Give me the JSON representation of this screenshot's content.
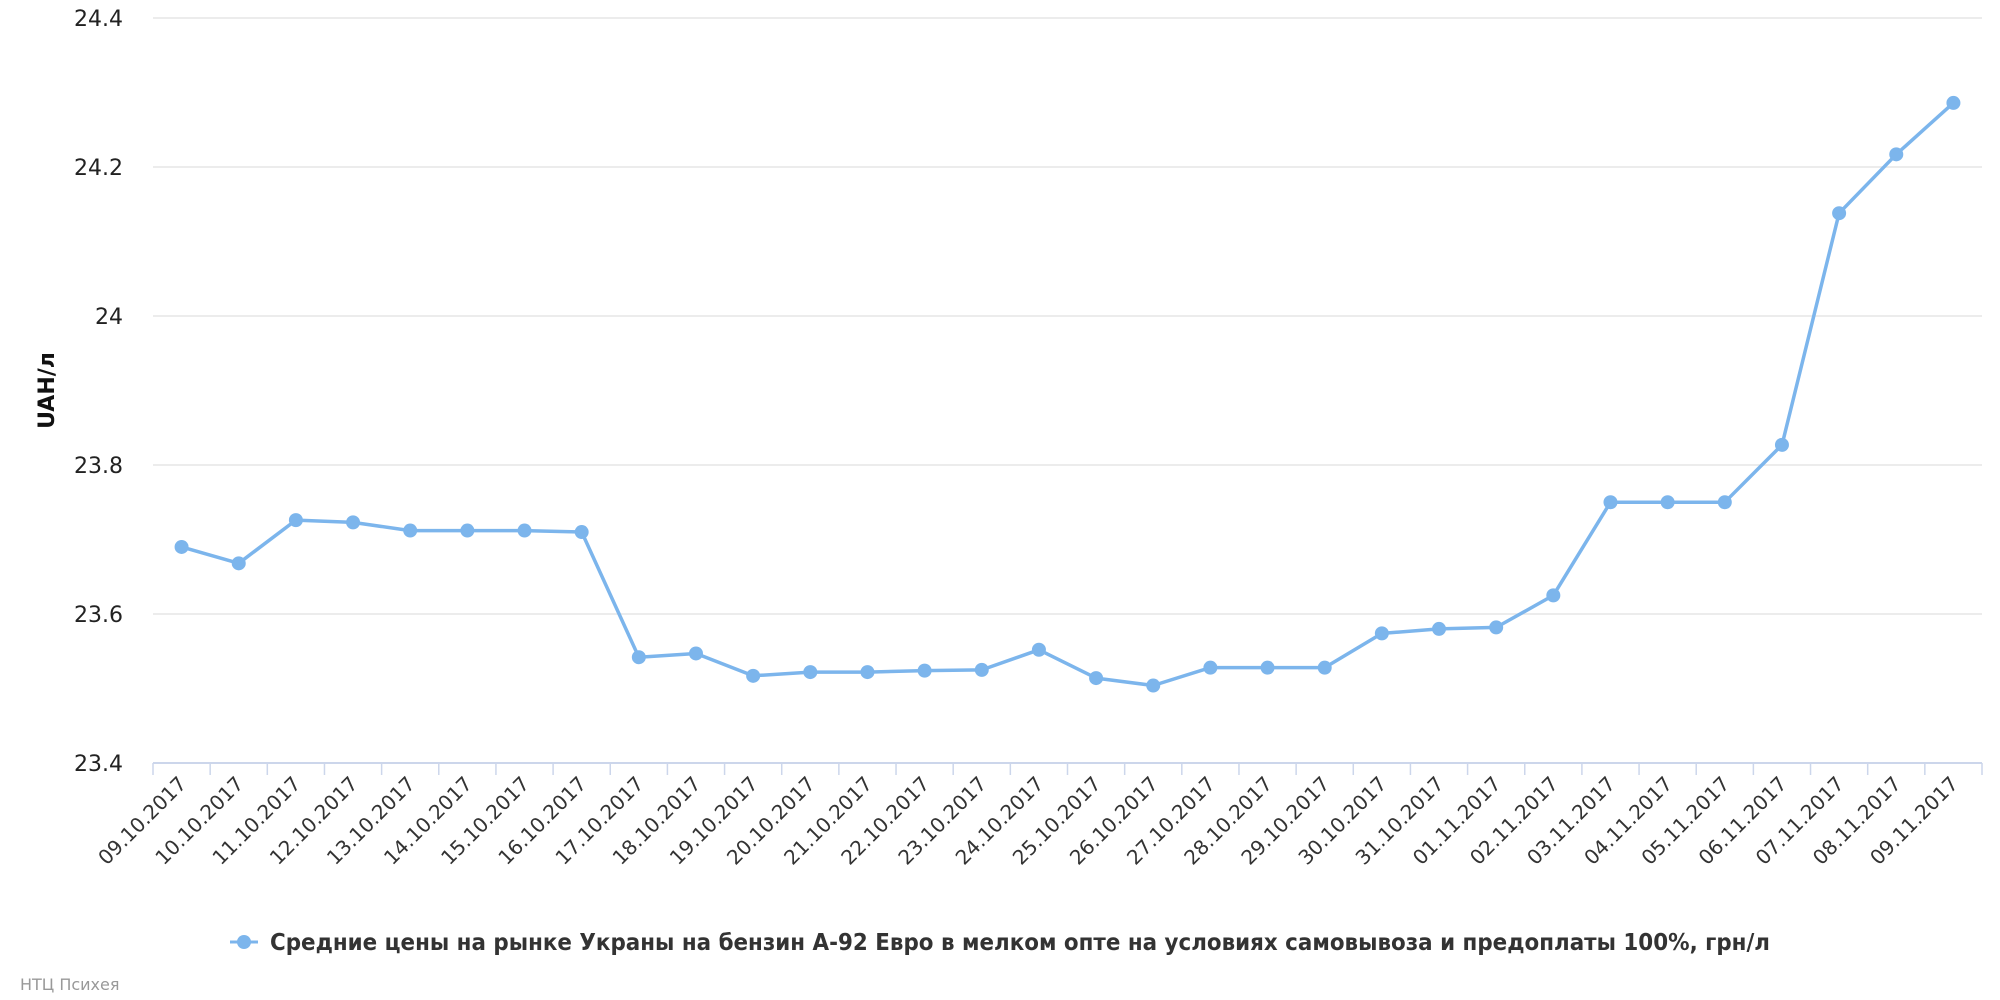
{
  "colors": {
    "series": "#7cb5ec",
    "grid": "#e6e6e6",
    "axis": "#ccd6eb"
  },
  "credit": "НТЦ Психея",
  "chart_data": {
    "type": "line",
    "ylabel": "UAH/л",
    "xlabel": "",
    "ylim": [
      23.4,
      24.4
    ],
    "yticks": [
      23.4,
      23.6,
      23.8,
      24,
      24.2,
      24.4
    ],
    "ytick_labels": [
      "23.4",
      "23.6",
      "23.8",
      "24",
      "24.2",
      "24.4"
    ],
    "grid": true,
    "legend_position": "bottom-center",
    "categories": [
      "09.10.2017",
      "10.10.2017",
      "11.10.2017",
      "12.10.2017",
      "13.10.2017",
      "14.10.2017",
      "15.10.2017",
      "16.10.2017",
      "17.10.2017",
      "18.10.2017",
      "19.10.2017",
      "20.10.2017",
      "21.10.2017",
      "22.10.2017",
      "23.10.2017",
      "24.10.2017",
      "25.10.2017",
      "26.10.2017",
      "27.10.2017",
      "28.10.2017",
      "29.10.2017",
      "30.10.2017",
      "31.10.2017",
      "01.11.2017",
      "02.11.2017",
      "03.11.2017",
      "04.11.2017",
      "05.11.2017",
      "06.11.2017",
      "07.11.2017",
      "08.11.2017",
      "09.11.2017"
    ],
    "series": [
      {
        "name": "Средние цены на рынке Украны на бензин А-92 Евро в мелком опте на условиях самовывоза и предоплаты 100%, грн/л",
        "values": [
          23.69,
          23.668,
          23.726,
          23.723,
          23.712,
          23.712,
          23.712,
          23.71,
          23.542,
          23.547,
          23.517,
          23.522,
          23.522,
          23.524,
          23.525,
          23.552,
          23.514,
          23.504,
          23.528,
          23.528,
          23.528,
          23.574,
          23.58,
          23.582,
          23.625,
          23.75,
          23.75,
          23.75,
          23.827,
          24.138,
          24.217,
          24.286
        ]
      }
    ]
  }
}
